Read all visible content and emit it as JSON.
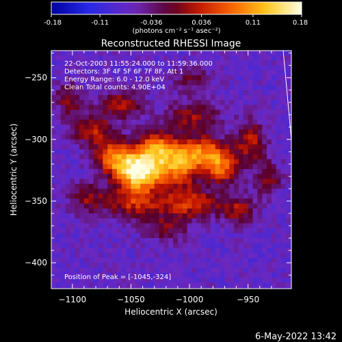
{
  "colorbar": {
    "tick_labels": [
      "-0.18",
      "-0.11",
      "-0.036",
      "0.036",
      "0.11",
      "0.18"
    ],
    "tick_values": [
      -0.18,
      -0.11,
      -0.036,
      0.036,
      0.11,
      0.18
    ],
    "range": [
      -0.18,
      0.18
    ],
    "unit_label": "(photons cm⁻² s⁻¹ asec⁻²)"
  },
  "chart_data": {
    "type": "heatmap",
    "title": "Reconstructed RHESSI Image",
    "xlabel": "Heliocentric X (arcsec)",
    "ylabel": "Heliocentric Y (arcsec)",
    "xlim": [
      -1118,
      -913
    ],
    "ylim": [
      -421,
      -228
    ],
    "x_ticks": [
      -1100,
      -1050,
      -1000,
      -950
    ],
    "x_tick_labels": [
      "−1100",
      "−1050",
      "−1000",
      "−950"
    ],
    "y_ticks": [
      -250,
      -300,
      -350,
      -400
    ],
    "y_tick_labels": [
      "−250",
      "−300",
      "−350",
      "−400"
    ],
    "annotations": [
      "22-Oct-2003 11:55:24.000 to 11:59:36.000",
      "Detectors: 3F 4F 5F 6F 7F 8F, Att 1",
      "Energy Range: 6.0 - 12.0 keV",
      "Clean     Total counts: 4.90E+04"
    ],
    "peak_label": "Position of Peak = [-1045,-324]",
    "peak": {
      "x": -1045,
      "y": -324,
      "value": 0.18
    },
    "colormap": "blue-purple-red-yellow-white",
    "limb_line": [
      [
        -920,
        -228
      ],
      [
        -913,
        -300
      ]
    ]
  },
  "footer": {
    "date": "6-May-2022 13:42"
  },
  "colors": {
    "background": "#000000",
    "text": "#ffffff"
  }
}
